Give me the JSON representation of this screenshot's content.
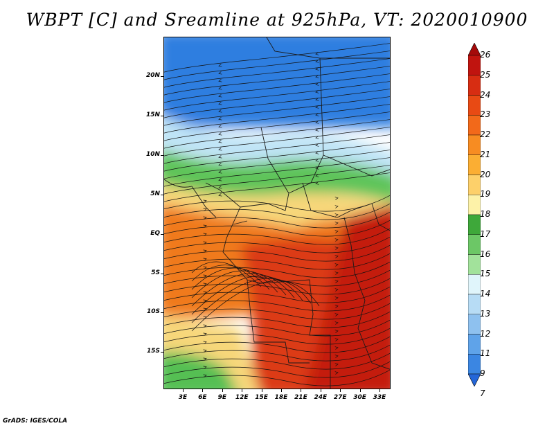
{
  "title": "WBPT [C] and Sreamline at 925hPa, VT: 2020010900",
  "footer": "GrADS: IGES/COLA",
  "map": {
    "variable": "wet-bulb potential temperature",
    "units": "C",
    "level": "925hPa",
    "valid_time": "2020010900",
    "overlay": "streamlines",
    "lat_ticks": [
      "20N",
      "15N",
      "10N",
      "5N",
      "EQ",
      "5S",
      "10S",
      "15S"
    ],
    "lon_ticks": [
      "3E",
      "6E",
      "9E",
      "12E",
      "15E",
      "18E",
      "21E",
      "24E",
      "27E",
      "30E",
      "33E"
    ],
    "region_colors": {
      "north_cool": "#2f7ee0",
      "transition_pale": "#bfe4f6",
      "green_band": "#5fc45a",
      "yellow_band": "#f7d77a",
      "orange_band": "#f07a1e",
      "south_hot": "#dc3a14",
      "east_hot": "#c41e10",
      "southwest_green": "#55bf52"
    }
  },
  "colorbar": {
    "levels": [
      "26",
      "25",
      "24",
      "23",
      "22",
      "21",
      "20",
      "19",
      "18",
      "17",
      "16",
      "15",
      "14",
      "13",
      "12",
      "11",
      "9",
      "7"
    ],
    "colors": [
      "#a50a0a",
      "#c0140f",
      "#d72d12",
      "#e84a14",
      "#f2691a",
      "#f78c22",
      "#fbae33",
      "#fdd06a",
      "#fdf2a8",
      "#3ea83a",
      "#6cc766",
      "#a2e29b",
      "#e0f5fb",
      "#b7dcf5",
      "#8ec1ef",
      "#5fa3e9",
      "#3b86e2",
      "#2466d8"
    ]
  }
}
